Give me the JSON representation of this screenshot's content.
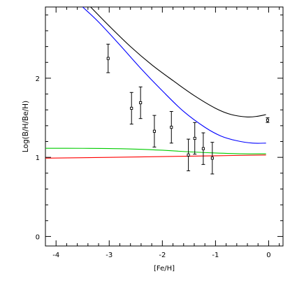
{
  "chart_data": {
    "type": "line",
    "title": "",
    "xlabel": "[Fe/H]",
    "ylabel": "Log(B/H/Be/H)",
    "xlim": [
      -4.2,
      0.27
    ],
    "ylim": [
      -0.12,
      2.9
    ],
    "grid": false,
    "legend": "none",
    "x_ticks_major": [
      -4,
      -3,
      -2,
      -1,
      0
    ],
    "x_ticks_major_labels": [
      "-4",
      "-3",
      "-2",
      "-1",
      "0"
    ],
    "x_ticks_minor_step": 0.2,
    "y_ticks_major": [
      0,
      1,
      2
    ],
    "y_ticks_major_labels": [
      "0",
      "1",
      "2"
    ],
    "y_ticks_minor_step": 0.2,
    "series": [
      {
        "color": "#000000",
        "x": [
          -3.35,
          -3.0,
          -2.6,
          -2.2,
          -1.8,
          -1.4,
          -1.0,
          -0.7,
          -0.4,
          -0.2,
          -0.05
        ],
        "y": [
          2.9,
          2.66,
          2.4,
          2.17,
          1.97,
          1.78,
          1.62,
          1.54,
          1.51,
          1.52,
          1.54
        ]
      },
      {
        "color": "#0000ff",
        "x": [
          -3.5,
          -3.2,
          -2.8,
          -2.4,
          -2.0,
          -1.6,
          -1.2,
          -0.9,
          -0.6,
          -0.3,
          -0.05
        ],
        "y": [
          2.9,
          2.71,
          2.42,
          2.12,
          1.84,
          1.58,
          1.38,
          1.27,
          1.21,
          1.18,
          1.18
        ]
      },
      {
        "color": "#00cc00",
        "x": [
          -4.2,
          -3.5,
          -3.0,
          -2.5,
          -2.0,
          -1.5,
          -1.0,
          -0.5,
          -0.05
        ],
        "y": [
          1.115,
          1.114,
          1.111,
          1.104,
          1.09,
          1.07,
          1.055,
          1.045,
          1.045
        ]
      },
      {
        "color": "#ff0000",
        "x": [
          -4.2,
          -3.0,
          -2.0,
          -1.0,
          -0.05
        ],
        "y": [
          0.99,
          1.0,
          1.01,
          1.02,
          1.03
        ]
      }
    ],
    "points": [
      {
        "x": -3.02,
        "y": 2.25,
        "err": 0.18
      },
      {
        "x": -2.58,
        "y": 1.62,
        "err": 0.2
      },
      {
        "x": -2.41,
        "y": 1.69,
        "err": 0.2
      },
      {
        "x": -2.15,
        "y": 1.33,
        "err": 0.2
      },
      {
        "x": -1.83,
        "y": 1.38,
        "err": 0.2
      },
      {
        "x": -1.51,
        "y": 1.03,
        "err": 0.2
      },
      {
        "x": -1.39,
        "y": 1.24,
        "err": 0.2
      },
      {
        "x": -1.23,
        "y": 1.11,
        "err": 0.2
      },
      {
        "x": -1.06,
        "y": 0.99,
        "err": 0.2
      },
      {
        "x": -0.02,
        "y": 1.47,
        "err": 0.03
      }
    ]
  }
}
